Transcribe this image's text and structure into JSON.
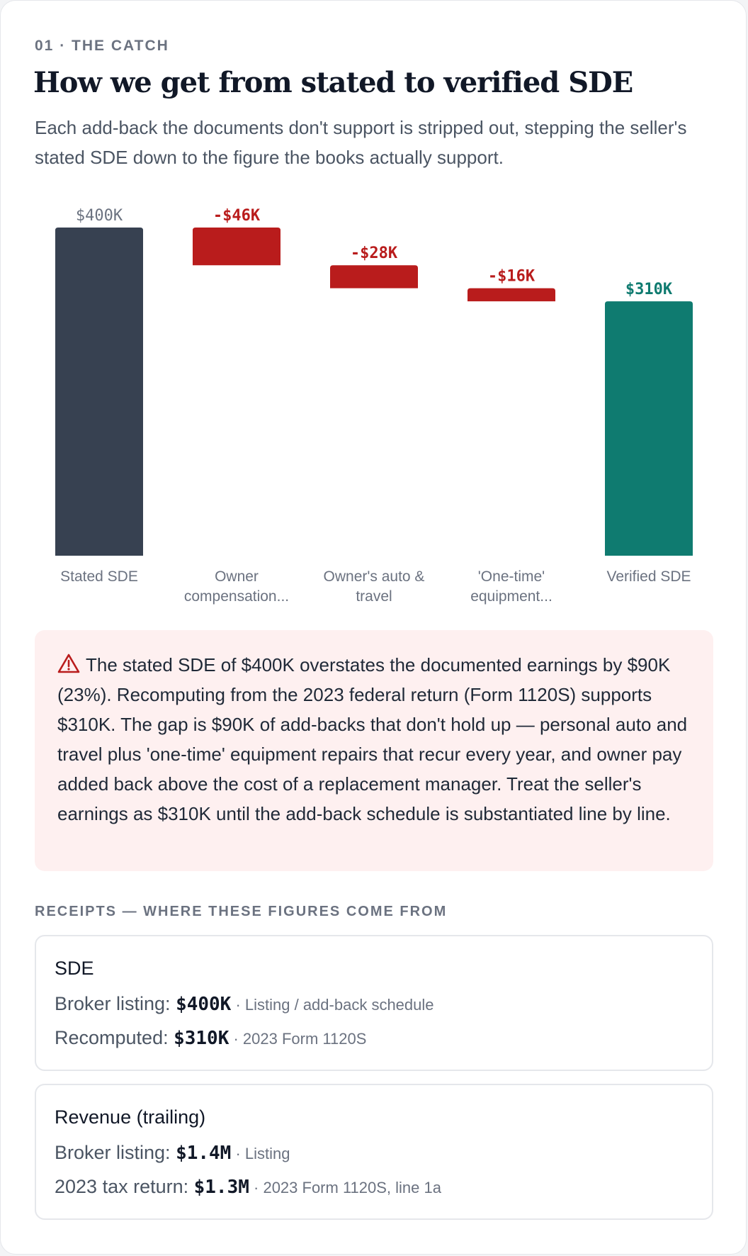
{
  "header": {
    "eyebrow": "01 · THE CATCH",
    "title": "How we get from stated to verified SDE",
    "subtitle": "Each add-back the documents don't support is stripped out, stepping the seller's stated SDE down to the figure the books actually support."
  },
  "chart_data": {
    "type": "bar",
    "subtype": "waterfall",
    "unit": "$K",
    "categories": [
      [
        "Stated SDE"
      ],
      [
        "Owner",
        "compensation..."
      ],
      [
        "Owner's auto &",
        "travel"
      ],
      [
        "'One-time'",
        "equipment..."
      ],
      [
        "Verified SDE"
      ]
    ],
    "values": [
      400,
      -46,
      -28,
      -16,
      310
    ],
    "bar_kinds": [
      "total",
      "decrease",
      "decrease",
      "decrease",
      "total"
    ],
    "data_labels": [
      "$400K",
      "-$46K",
      "-$28K",
      "-$16K",
      "$310K"
    ],
    "ylim": [
      0,
      400
    ],
    "colors": {
      "total": "#374151",
      "decrease": "#b91c1c",
      "final": "#0f7b70",
      "total_label": "#6b7280",
      "decrease_label": "#b91c1c",
      "final_label": "#0f7b70",
      "axis_label": "#6b7280"
    },
    "grid": false
  },
  "callout": {
    "icon": "warning-triangle-icon",
    "text": "The stated SDE of $400K overstates the documented earnings by $90K (23%). Recomputing from the 2023 federal return (Form 1120S) supports $310K. The gap is $90K of add-backs that don't hold up — personal auto and travel plus 'one-time' equipment repairs that recur every year, and owner pay added back above the cost of a replacement manager. Treat the seller's earnings as $310K until the add-back schedule is substantiated line by line."
  },
  "receipts": {
    "label": "RECEIPTS — WHERE THESE FIGURES COME FROM",
    "items": [
      {
        "title": "SDE",
        "lines": [
          {
            "label": "Broker listing: ",
            "value": "$400K",
            "source": " · Listing / add-back schedule"
          },
          {
            "label": "Recomputed: ",
            "value": "$310K",
            "source": " · 2023 Form 1120S"
          }
        ]
      },
      {
        "title": "Revenue (trailing)",
        "lines": [
          {
            "label": "Broker listing: ",
            "value": "$1.4M",
            "source": " · Listing"
          },
          {
            "label": "2023 tax return: ",
            "value": "$1.3M",
            "source": " · 2023 Form 1120S, line 1a"
          }
        ]
      }
    ]
  }
}
